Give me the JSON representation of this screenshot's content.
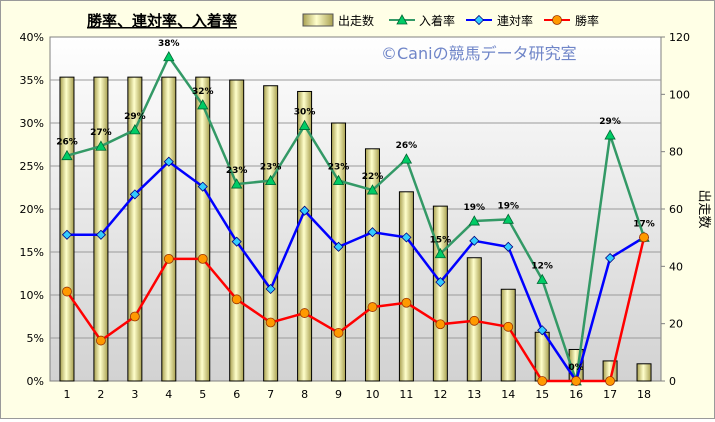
{
  "chart_data": {
    "type": "bar+line",
    "title": "勝率、連対率、入着率",
    "watermark": "©Caniの競馬データ研究室",
    "categories": [
      "1",
      "2",
      "3",
      "4",
      "5",
      "6",
      "7",
      "8",
      "9",
      "10",
      "11",
      "12",
      "13",
      "14",
      "15",
      "16",
      "17",
      "18"
    ],
    "left_axis": {
      "range": [
        0,
        40
      ],
      "ticks": [
        "0%",
        "5%",
        "10%",
        "15%",
        "20%",
        "25%",
        "30%",
        "35%",
        "40%"
      ]
    },
    "right_axis": {
      "label": "出走数",
      "range": [
        0,
        120
      ],
      "ticks": [
        "0",
        "20",
        "40",
        "60",
        "80",
        "100",
        "120"
      ]
    },
    "bar_series": {
      "name": "出走数",
      "values": [
        106,
        106,
        106,
        106,
        106,
        105,
        103,
        101,
        90,
        81,
        66,
        61,
        43,
        32,
        17,
        11,
        7,
        6
      ]
    },
    "line_series": [
      {
        "key": "place",
        "name": "入着率",
        "color": "#339966",
        "marker": "triangle",
        "values": [
          26.2,
          27.3,
          29.2,
          37.7,
          32.1,
          22.9,
          23.3,
          29.7,
          23.3,
          22.2,
          25.8,
          14.8,
          18.6,
          18.8,
          11.8,
          0,
          28.6,
          16.7
        ]
      },
      {
        "key": "rentai",
        "name": "連対率",
        "color": "#0000ff",
        "marker": "diamond",
        "values": [
          17.0,
          17.0,
          21.7,
          25.5,
          22.6,
          16.2,
          10.7,
          19.8,
          15.6,
          17.3,
          16.7,
          11.5,
          16.3,
          15.6,
          5.9,
          0,
          14.3,
          16.7
        ]
      },
      {
        "key": "win",
        "name": "勝率",
        "color": "#ff0000",
        "marker": "circle",
        "values": [
          10.4,
          4.7,
          7.5,
          14.2,
          14.2,
          9.5,
          6.8,
          7.9,
          5.6,
          8.6,
          9.1,
          6.6,
          7.0,
          6.3,
          0,
          0,
          0,
          16.7
        ]
      }
    ],
    "data_labels": [
      "26%",
      "27%",
      "29%",
      "38%",
      "32%",
      "23%",
      "23%",
      "30%",
      "23%",
      "22%",
      "26%",
      "15%",
      "19%",
      "19%",
      "12%",
      "0%",
      "29%",
      "17%"
    ],
    "legend_position": "top",
    "grid": true
  }
}
